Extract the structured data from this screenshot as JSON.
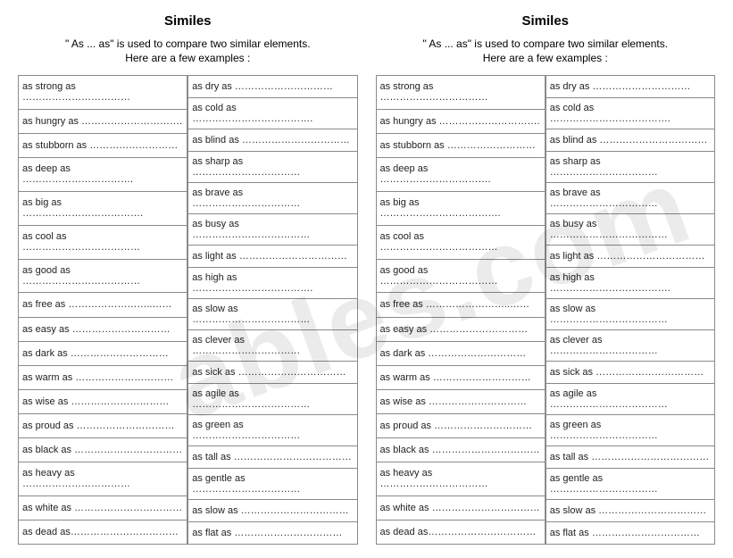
{
  "title": "Similes",
  "subtitle1": "\" As ... as\"  is used to compare two similar elements.",
  "subtitle2": "Here are a few examples :",
  "col1": [
    "as strong as  ……………………………",
    "as hungry as  ………………………….",
    "as stubborn as   ………………………",
    "as deep as  …………………………….",
    "as big as  ……………………………….",
    "as cool as  ………………………………",
    "as good as  ………………………………",
    "as free as  ……………………..……",
    "as easy as  …………………………",
    "as dark as  …………………………",
    "as warm as  …………………………",
    "as wise as  …………………………",
    "as proud as  …………………………",
    "as black as  ……………………………",
    "as heavy as  ……………………………",
    "as white as  ……………………………",
    "as dead as……………………………"
  ],
  "col2": [
    "as dry as …………………………",
    "as cold as ……………………………….",
    "as blind as ……………………………",
    "as sharp as ……………………………",
    "as brave as ……………………………",
    " as busy as ………………………………",
    "as light as  ……………………………",
    "as high as ……………………………….",
    "as slow as ………………………………",
    "as clever as ……………………………",
    "as sick as ……………………………",
    "as agile as ………………………………",
    "as green as ……………………………",
    "as tall as ………………………………",
    "as gentle as ……………………………",
    "as slow as ……………………………",
    "as flat as ……………………………"
  ],
  "watermark": "ables.com",
  "colors": {
    "border": "#8a8a8a",
    "text": "#222222",
    "background": "#ffffff",
    "watermark": "rgba(0,0,0,0.08)"
  }
}
